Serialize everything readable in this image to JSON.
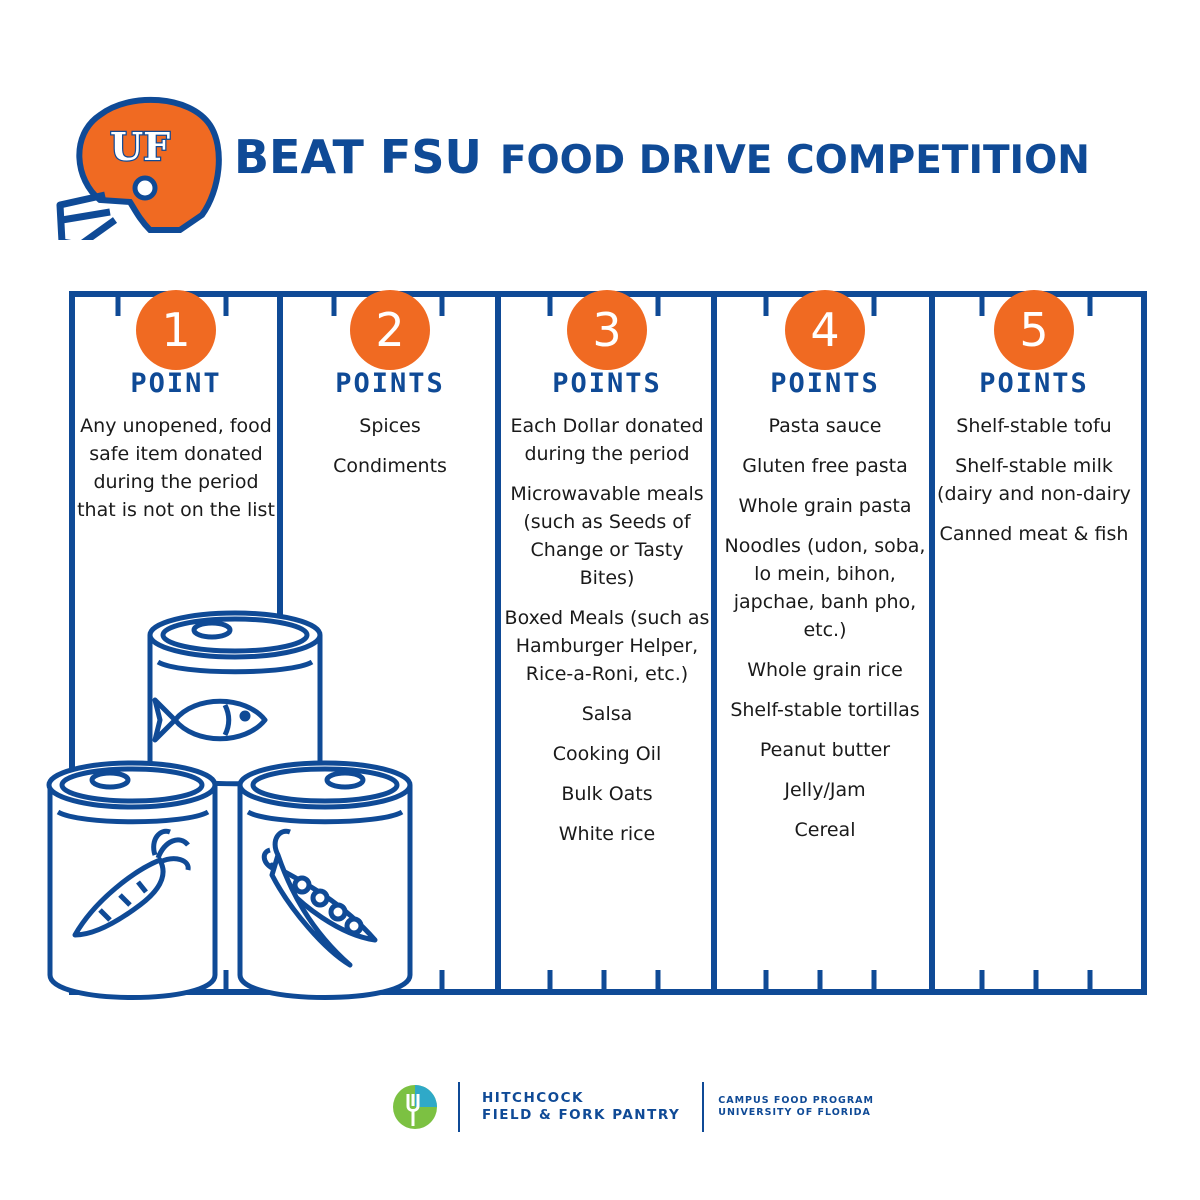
{
  "title": {
    "part1": "BEAT FSU",
    "part2": "FOOD DRIVE COMPETITION"
  },
  "logo": {
    "helmet_text": "UF",
    "helmet_icon": "football-helmet-icon"
  },
  "colors": {
    "blue": "#0f4a96",
    "orange": "#f06a22",
    "green": "#7cc142",
    "teal": "#2fa9c8"
  },
  "columns": [
    {
      "number": "1",
      "label": "POINT",
      "items": [
        "Any unopened, food safe item donated during the period that is not on the list"
      ]
    },
    {
      "number": "2",
      "label": "POINTS",
      "items": [
        "Spices",
        "Condiments"
      ]
    },
    {
      "number": "3",
      "label": "POINTS",
      "items": [
        "Each Dollar donated during the period",
        "Microwavable meals (such as Seeds of Change or Tasty Bites)",
        "Boxed Meals (such as Hamburger Helper, Rice-a-Roni, etc.)",
        "Salsa",
        "Cooking Oil",
        "Bulk Oats",
        "White rice"
      ]
    },
    {
      "number": "4",
      "label": "POINTS",
      "items": [
        "Pasta sauce",
        "Gluten free pasta",
        "Whole grain pasta",
        "Noodles (udon, soba, lo mein, bihon, japchae, banh pho, etc.)",
        "Whole grain rice",
        "Shelf-stable tortillas",
        "Peanut butter",
        "Jelly/Jam",
        "Cereal"
      ]
    },
    {
      "number": "5",
      "label": "POINTS",
      "items": [
        "Shelf-stable tofu",
        "Shelf-stable milk (dairy and non-dairy",
        "Canned meat & fish"
      ]
    }
  ],
  "illustration": {
    "cans": [
      "fish-can-icon",
      "carrot-can-icon",
      "peas-can-icon"
    ]
  },
  "footer": {
    "pantry_line1": "HITCHCOCK",
    "pantry_line2": "FIELD & FORK PANTRY",
    "program_line1": "CAMPUS FOOD PROGRAM",
    "program_line2": "UNIVERSITY OF FLORIDA",
    "pantry_icon": "fork-leaf-logo-icon"
  }
}
